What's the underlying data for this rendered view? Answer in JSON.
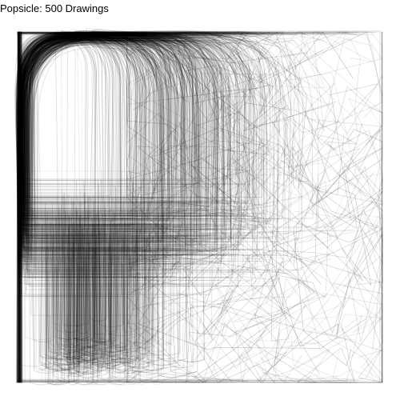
{
  "title": "Popsicle: 500 Drawings",
  "drawing_count": 500,
  "stroke_color": "#000000"
}
